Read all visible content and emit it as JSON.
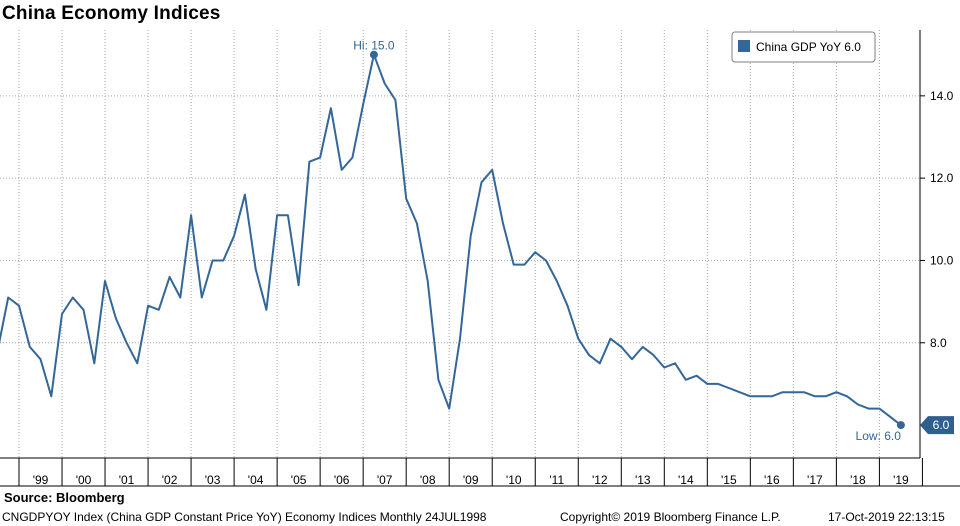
{
  "title": "China Economy Indices",
  "source": "Source: Bloomberg",
  "footer": {
    "left": "CNGDPYOY Index (China GDP Constant Price YoY) Economy Indices  Monthly 24JUL1998",
    "copyright": "Copyright© 2019 Bloomberg Finance L.P.",
    "timestamp": "17-Oct-2019 22:13:15"
  },
  "colors": {
    "series": "#336699",
    "grid": "#a6a6a6",
    "badge": "#2f5f8f"
  },
  "chart_data": {
    "type": "line",
    "title": "China Economy Indices",
    "xlabel": "",
    "ylabel": "",
    "ylim": [
      5.2,
      15.6
    ],
    "y_ticks": [
      "8.0",
      "10.0",
      "12.0",
      "14.0"
    ],
    "x_tick_labels": [
      "'99",
      "'00",
      "'01",
      "'02",
      "'03",
      "'04",
      "'05",
      "'06",
      "'07",
      "'08",
      "'09",
      "'10",
      "'11",
      "'12",
      "'13",
      "'14",
      "'15",
      "'16",
      "'17",
      "'18",
      "'19"
    ],
    "legend": {
      "label": "China GDP YoY 6.0",
      "position": "top-right"
    },
    "annotations": {
      "high": "Hi: 15.0",
      "low": "Low: 6.0",
      "last_value": "6.0"
    },
    "series": [
      {
        "name": "China GDP YoY",
        "x_start_year": 1998.5,
        "x_step": 0.25,
        "values": [
          7.8,
          9.1,
          8.9,
          7.9,
          7.6,
          6.7,
          8.7,
          9.1,
          8.8,
          7.5,
          9.5,
          8.6,
          8.0,
          7.5,
          8.9,
          8.8,
          9.6,
          9.1,
          11.1,
          9.1,
          10.0,
          10.0,
          10.6,
          11.6,
          9.8,
          8.8,
          11.1,
          11.1,
          9.4,
          12.4,
          12.5,
          13.7,
          12.2,
          12.5,
          13.8,
          15.0,
          14.3,
          13.9,
          11.5,
          10.9,
          9.5,
          7.1,
          6.4,
          8.1,
          10.6,
          11.9,
          12.2,
          10.9,
          9.9,
          9.9,
          10.2,
          10.0,
          9.5,
          8.9,
          8.1,
          7.7,
          7.5,
          8.1,
          7.9,
          7.6,
          7.9,
          7.7,
          7.4,
          7.5,
          7.1,
          7.2,
          7.0,
          7.0,
          6.9,
          6.8,
          6.7,
          6.7,
          6.7,
          6.8,
          6.8,
          6.8,
          6.7,
          6.7,
          6.8,
          6.7,
          6.5,
          6.4,
          6.4,
          6.2,
          6.0
        ]
      }
    ]
  }
}
